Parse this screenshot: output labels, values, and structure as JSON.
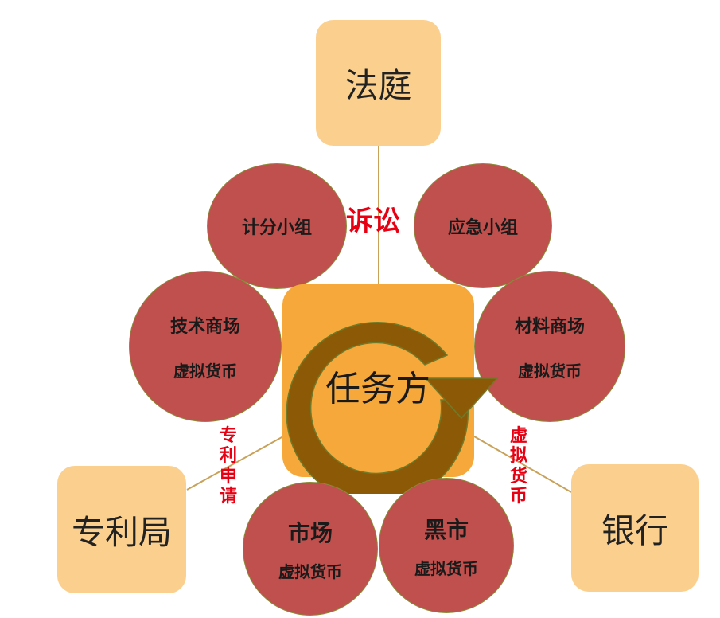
{
  "nodes": {
    "court": "法庭",
    "patent_office": "专利局",
    "bank": "银行",
    "center": "任务方",
    "scoring_group": "计分小组",
    "emergency_group": "应急小组",
    "tech_market": {
      "title": "技术商场",
      "sub": "虚拟货币"
    },
    "material_market": {
      "title": "材料商场",
      "sub": "虚拟货币"
    },
    "market": {
      "title": "市场",
      "sub": "虚拟货币"
    },
    "black_market": {
      "title": "黑市",
      "sub": "虚拟货币"
    }
  },
  "edge_labels": {
    "litigation": "诉讼",
    "patent_application": [
      "专",
      "利",
      "申",
      "请"
    ],
    "virtual_currency": [
      "虚",
      "拟",
      "货",
      "币"
    ]
  },
  "colors": {
    "outer_box": "#fbd08e",
    "center_box": "#f6a93a",
    "circle_fill": "#c0504d",
    "circle_border": "#8a8a3a",
    "arrow": "#8c5a06",
    "connector": "#c9a25a",
    "edge_label": "#e60012"
  }
}
